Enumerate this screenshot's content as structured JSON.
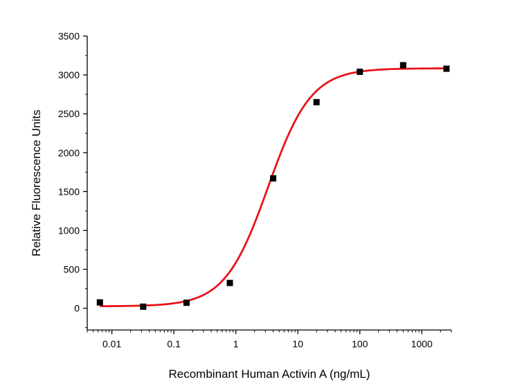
{
  "chart_data": {
    "type": "scatter",
    "title": "",
    "xlabel": "Recombinant Human Activin A (ng/mL)",
    "ylabel": "Relative Fluorescence Units",
    "xscale": "log",
    "xlim": [
      0.004,
      3000
    ],
    "ylim": [
      -280,
      3500
    ],
    "x_ticks": [
      0.01,
      0.1,
      1,
      10,
      100,
      1000
    ],
    "x_tick_labels": [
      "0.01",
      "0.1",
      "1",
      "10",
      "100",
      "1000"
    ],
    "y_ticks": [
      0,
      500,
      1000,
      1500,
      2000,
      2500,
      3000,
      3500
    ],
    "y_tick_labels": [
      "0",
      "500",
      "1000",
      "1500",
      "2000",
      "2500",
      "3000",
      "3500"
    ],
    "grid": false,
    "series": [
      {
        "marker": "square",
        "color": "#000000",
        "x": [
          0.0064,
          0.032,
          0.16,
          0.8,
          4,
          20,
          100,
          500,
          2500
        ],
        "y": [
          75,
          20,
          70,
          325,
          1670,
          2650,
          3040,
          3125,
          3080
        ]
      }
    ],
    "fit_curve": {
      "model": "4PL",
      "color": "#e8141b",
      "bottom": 25,
      "top": 3085,
      "ec50": 3.3,
      "hill": 1.25
    }
  }
}
